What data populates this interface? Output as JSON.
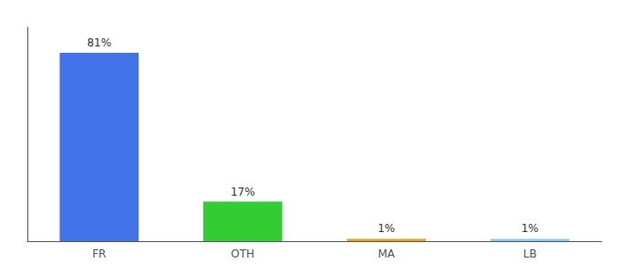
{
  "chart_data": {
    "type": "bar",
    "categories": [
      "FR",
      "OTH",
      "MA",
      "LB"
    ],
    "values": [
      81,
      17,
      1,
      1
    ],
    "value_labels": [
      "81%",
      "17%",
      "1%",
      "1%"
    ],
    "colors": [
      "#4472e8",
      "#33cc33",
      "#e8a020",
      "#88ccee"
    ],
    "ylim": [
      0,
      92
    ],
    "grid": false,
    "data_labels": true,
    "tick_labels": "x"
  }
}
